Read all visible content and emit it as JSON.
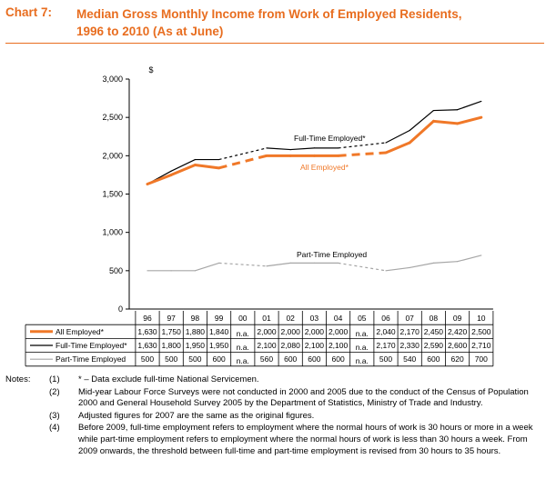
{
  "title": {
    "number": "Chart 7:",
    "text": "Median Gross Monthly Income from Work of Employed Residents,\n1996 to 2010 (As at June)"
  },
  "colors": {
    "accent": "#e86d1f",
    "all": "#f07828",
    "full": "#000000",
    "part": "#a6a6a6"
  },
  "chart_data": {
    "type": "line",
    "categories": [
      "96",
      "97",
      "98",
      "99",
      "00",
      "01",
      "02",
      "03",
      "04",
      "05",
      "06",
      "07",
      "08",
      "09",
      "10"
    ],
    "ylim": [
      0,
      3000
    ],
    "yticks": [
      "0",
      "500",
      "1,000",
      "1,500",
      "2,000",
      "2,500",
      "3,000"
    ],
    "yunit": "$",
    "series": [
      {
        "key": "all",
        "name": "All Employed*",
        "chart_label": "All Employed*",
        "values": [
          1630,
          1750,
          1880,
          1840,
          null,
          2000,
          2000,
          2000,
          2000,
          null,
          2040,
          2170,
          2450,
          2420,
          2500
        ],
        "labels": [
          "1,630",
          "1,750",
          "1,880",
          "1,840",
          "n.a.",
          "2,000",
          "2,000",
          "2,000",
          "2,000",
          "n.a.",
          "2,040",
          "2,170",
          "2,450",
          "2,420",
          "2,500"
        ]
      },
      {
        "key": "full",
        "name": "Full-Time Employed*",
        "chart_label": "Full-Time Employed*",
        "values": [
          1630,
          1800,
          1950,
          1950,
          null,
          2100,
          2080,
          2100,
          2100,
          null,
          2170,
          2330,
          2590,
          2600,
          2710
        ],
        "labels": [
          "1,630",
          "1,800",
          "1,950",
          "1,950",
          "n.a.",
          "2,100",
          "2,080",
          "2,100",
          "2,100",
          "n.a.",
          "2,170",
          "2,330",
          "2,590",
          "2,600",
          "2,710"
        ]
      },
      {
        "key": "part",
        "name": "Part-Time Employed",
        "chart_label": "Part-Time Employed",
        "values": [
          500,
          500,
          500,
          600,
          null,
          560,
          600,
          600,
          600,
          null,
          500,
          540,
          600,
          620,
          700
        ],
        "labels": [
          "500",
          "500",
          "500",
          "600",
          "n.a.",
          "560",
          "600",
          "600",
          "600",
          "n.a.",
          "500",
          "540",
          "600",
          "620",
          "700"
        ]
      }
    ]
  },
  "notes": {
    "label": "Notes:",
    "items": [
      {
        "id": "(1)",
        "text": "* – Data exclude full-time National Servicemen."
      },
      {
        "id": "(2)",
        "text": "Mid-year Labour Force Surveys were not conducted in 2000 and 2005 due to the conduct of the Census of Population 2000 and General Household Survey 2005 by the Department of Statistics, Ministry of Trade and Industry."
      },
      {
        "id": "(3)",
        "text": "Adjusted figures for 2007 are the same as the original figures."
      },
      {
        "id": "(4)",
        "text": "Before 2009, full-time employment refers to employment where the normal hours of work is 30 hours or more in a week while part-time employment refers to employment where the normal hours of work is less than 30 hours a week.  From 2009 onwards, the threshold between full-time and part-time employment is revised from 30 hours to 35 hours."
      }
    ]
  }
}
